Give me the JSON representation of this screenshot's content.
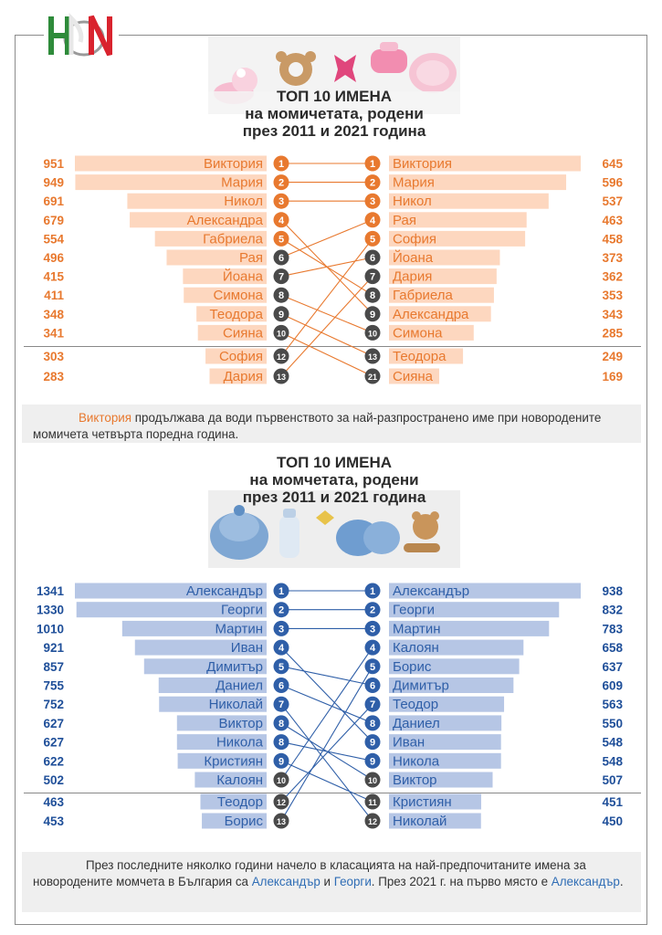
{
  "chart_data": [
    {
      "type": "bar",
      "title_lines": [
        "ТОП 10 ИМЕНА",
        "на момичетата, родени",
        "през 2011 и 2021 година"
      ],
      "colors": {
        "bar": "#fdd7bf",
        "accent": "#e8792f",
        "number": "#e8792f"
      },
      "left": {
        "year": "2011",
        "entries": [
          {
            "name": "Виктория",
            "value": 951,
            "rank": "1"
          },
          {
            "name": "Мария",
            "value": 949,
            "rank": "2"
          },
          {
            "name": "Никол",
            "value": 691,
            "rank": "3"
          },
          {
            "name": "Александра",
            "value": 679,
            "rank": "4"
          },
          {
            "name": "Габриела",
            "value": 554,
            "rank": "5"
          },
          {
            "name": "Рая",
            "value": 496,
            "rank": "6"
          },
          {
            "name": "Йоана",
            "value": 415,
            "rank": "7"
          },
          {
            "name": "Симона",
            "value": 411,
            "rank": "8"
          },
          {
            "name": "Теодора",
            "value": 348,
            "rank": "9"
          },
          {
            "name": "Сияна",
            "value": 341,
            "rank": "10"
          },
          {
            "name": "София",
            "value": 303,
            "rank": "12"
          },
          {
            "name": "Дария",
            "value": 283,
            "rank": "13"
          }
        ]
      },
      "right": {
        "year": "2021",
        "entries": [
          {
            "name": "Виктория",
            "value": 645,
            "rank": "1"
          },
          {
            "name": "Мария",
            "value": 596,
            "rank": "2"
          },
          {
            "name": "Никол",
            "value": 537,
            "rank": "3"
          },
          {
            "name": "Рая",
            "value": 463,
            "rank": "4"
          },
          {
            "name": "София",
            "value": 458,
            "rank": "5"
          },
          {
            "name": "Йоана",
            "value": 373,
            "rank": "6"
          },
          {
            "name": "Дария",
            "value": 362,
            "rank": "7"
          },
          {
            "name": "Габриела",
            "value": 353,
            "rank": "8"
          },
          {
            "name": "Александра",
            "value": 343,
            "rank": "9"
          },
          {
            "name": "Симона",
            "value": 285,
            "rank": "10"
          },
          {
            "name": "Теодора",
            "value": 249,
            "rank": "13"
          },
          {
            "name": "Сияна",
            "value": 169,
            "rank": "21"
          }
        ]
      },
      "note": {
        "highlight": "Виктория",
        "text": " продължава да води първенството за най-разпространено име при новородените момичета четвърта поредна година."
      }
    },
    {
      "type": "bar",
      "title_lines": [
        "ТОП 10 ИМЕНА",
        "на момчетата, родени",
        "през 2011 и 2021 година"
      ],
      "colors": {
        "bar": "#b6c6e5",
        "accent": "#2f5fa8",
        "number": "#1f4f99"
      },
      "left": {
        "year": "2011",
        "entries": [
          {
            "name": "Александър",
            "value": 1341,
            "rank": "1"
          },
          {
            "name": "Георги",
            "value": 1330,
            "rank": "2"
          },
          {
            "name": "Мартин",
            "value": 1010,
            "rank": "3"
          },
          {
            "name": "Иван",
            "value": 921,
            "rank": "4"
          },
          {
            "name": "Димитър",
            "value": 857,
            "rank": "5"
          },
          {
            "name": "Даниел",
            "value": 755,
            "rank": "6"
          },
          {
            "name": "Николай",
            "value": 752,
            "rank": "7"
          },
          {
            "name": "Виктор",
            "value": 627,
            "rank": "8"
          },
          {
            "name": "Никола",
            "value": 627,
            "rank": "8"
          },
          {
            "name": "Кристиян",
            "value": 622,
            "rank": "9"
          },
          {
            "name": "Калоян",
            "value": 502,
            "rank": "10"
          },
          {
            "name": "Теодор",
            "value": 463,
            "rank": "12"
          },
          {
            "name": "Борис",
            "value": 453,
            "rank": "13"
          }
        ]
      },
      "right": {
        "year": "2021",
        "entries": [
          {
            "name": "Александър",
            "value": 938,
            "rank": "1"
          },
          {
            "name": "Георги",
            "value": 832,
            "rank": "2"
          },
          {
            "name": "Мартин",
            "value": 783,
            "rank": "3"
          },
          {
            "name": "Калоян",
            "value": 658,
            "rank": "4"
          },
          {
            "name": "Борис",
            "value": 637,
            "rank": "5"
          },
          {
            "name": "Димитър",
            "value": 609,
            "rank": "6"
          },
          {
            "name": "Теодор",
            "value": 563,
            "rank": "7"
          },
          {
            "name": "Даниел",
            "value": 550,
            "rank": "8"
          },
          {
            "name": "Иван",
            "value": 548,
            "rank": "9"
          },
          {
            "name": "Никола",
            "value": 548,
            "rank": "9"
          },
          {
            "name": "Виктор",
            "value": 507,
            "rank": "10"
          },
          {
            "name": "Кристиян",
            "value": 451,
            "rank": "11"
          },
          {
            "name": "Николай",
            "value": 450,
            "rank": "12"
          }
        ]
      },
      "note": {
        "part1": "През последните няколко години начело в класацията на най-предпочитаните имена за новородените момчета в България са ",
        "hl1": "Александър",
        "part2": " и ",
        "hl2": "Георги",
        "part3": ". През 2021 г. на първо място е ",
        "hl3": "Александър",
        "part4": "."
      }
    }
  ],
  "logo": {
    "text": "НСИ",
    "colors": [
      "#2e8b3a",
      "#d9232e",
      "#9a9a9a"
    ]
  }
}
